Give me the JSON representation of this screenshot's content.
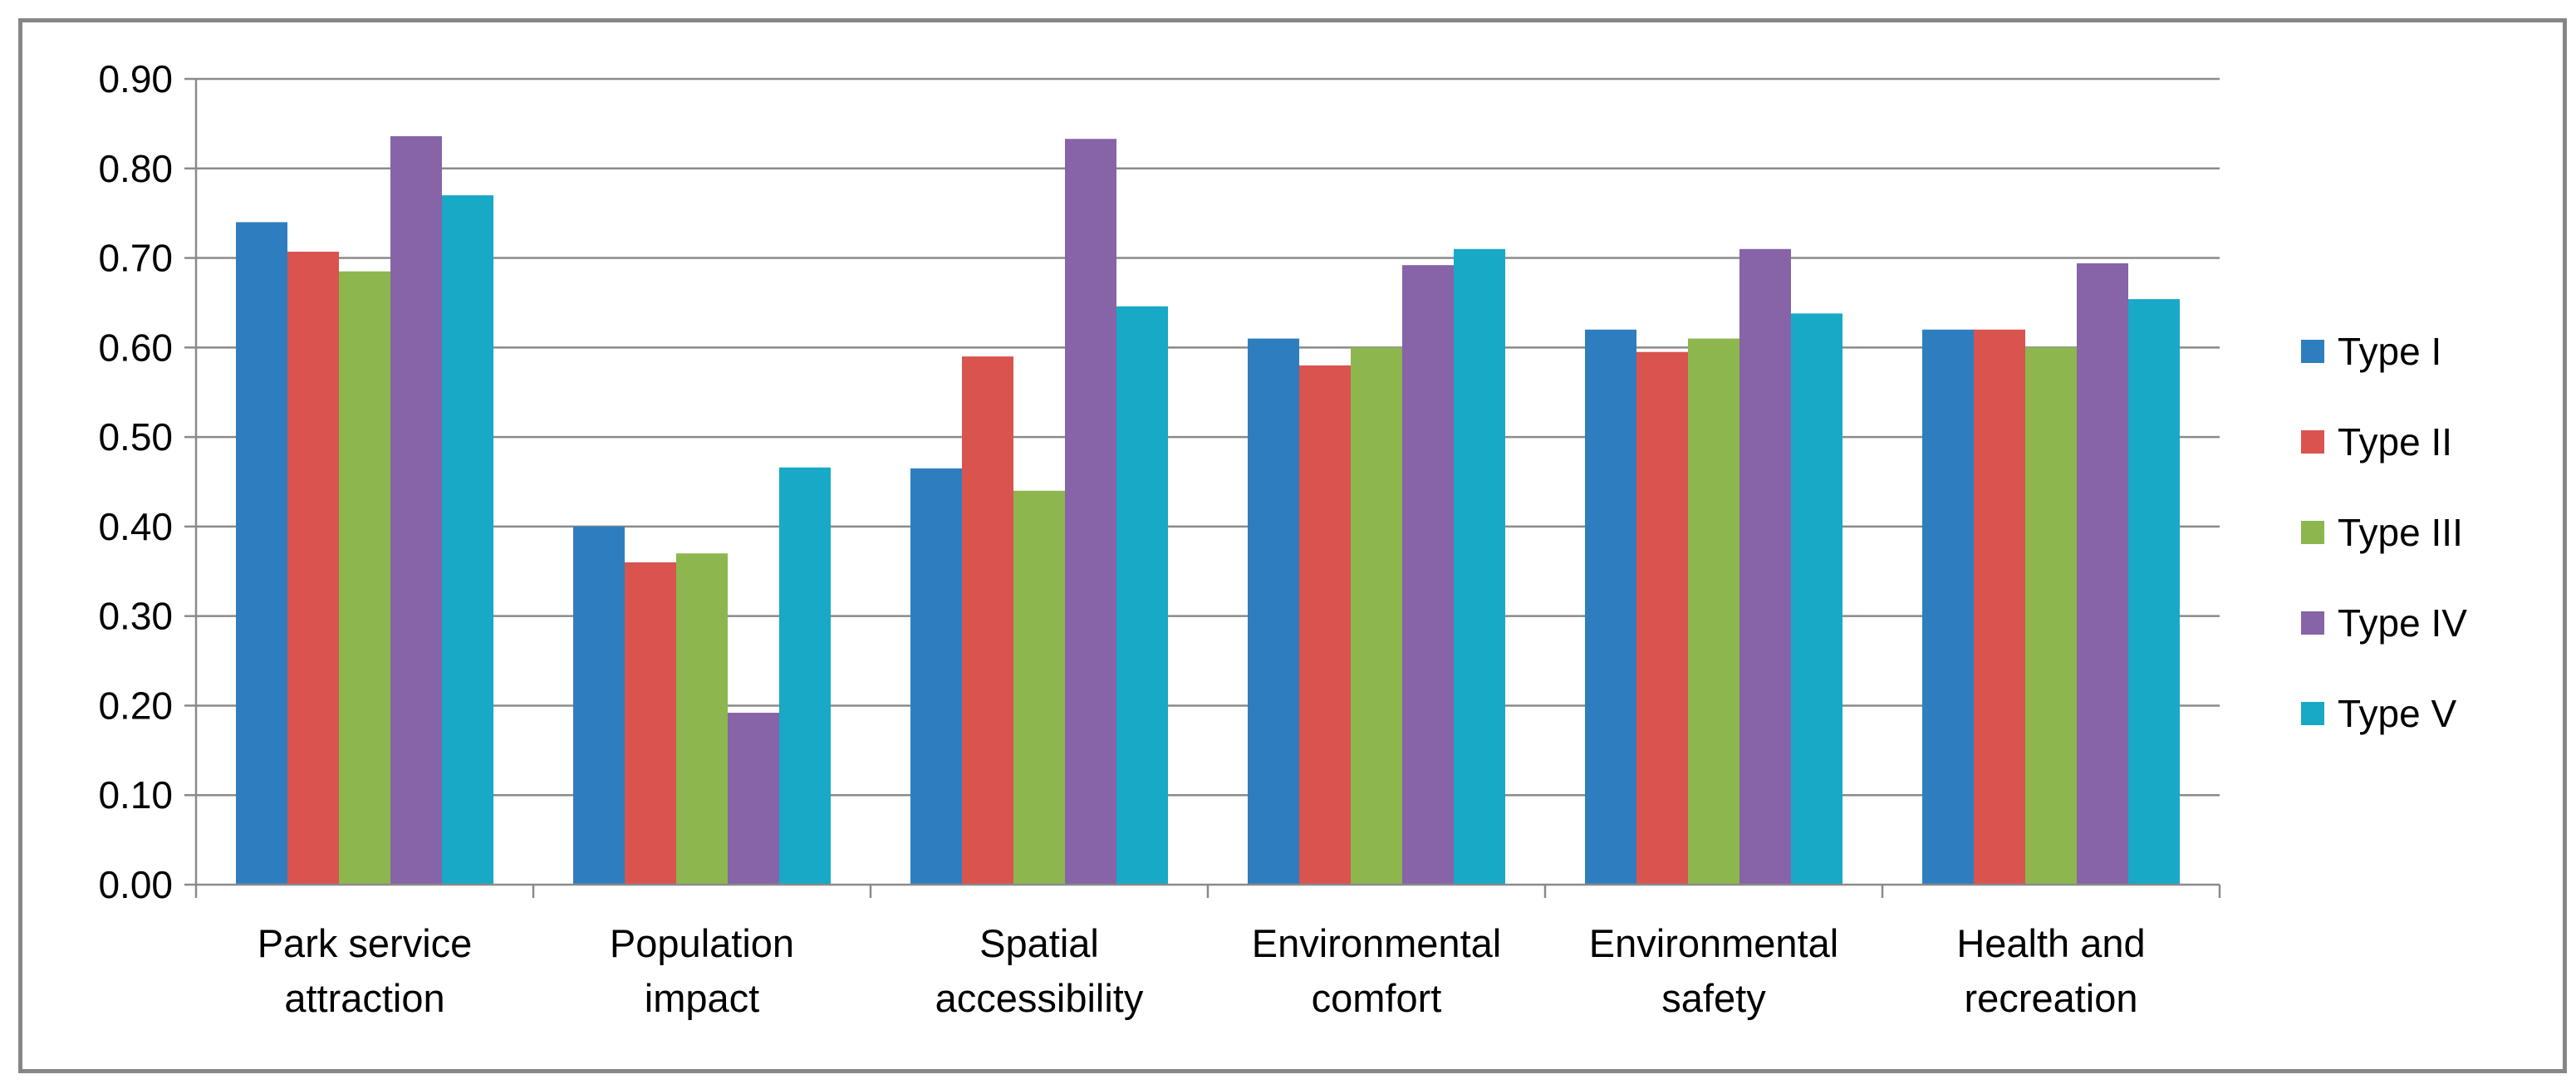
{
  "chart_data": {
    "type": "bar",
    "title": "",
    "xlabel": "",
    "ylabel": "",
    "ylim": [
      0,
      0.9
    ],
    "yticks": [
      "0.00",
      "0.10",
      "0.20",
      "0.30",
      "0.40",
      "0.50",
      "0.60",
      "0.70",
      "0.80",
      "0.90"
    ],
    "grid": true,
    "legend_position": "right",
    "categories": [
      [
        "Park service",
        "attraction"
      ],
      [
        "Population",
        "impact"
      ],
      [
        "Spatial",
        "accessibility"
      ],
      [
        "Environmental",
        "comfort"
      ],
      [
        "Environmental",
        "safety"
      ],
      [
        "Health and",
        "recreation"
      ]
    ],
    "series": [
      {
        "name": "Type I",
        "color": "#2e7ebf",
        "values": [
          0.74,
          0.4,
          0.465,
          0.61,
          0.62,
          0.62
        ]
      },
      {
        "name": "Type II",
        "color": "#d9534f",
        "values": [
          0.707,
          0.36,
          0.59,
          0.58,
          0.595,
          0.62
        ]
      },
      {
        "name": "Type III",
        "color": "#8db64e",
        "values": [
          0.685,
          0.37,
          0.44,
          0.6,
          0.61,
          0.6
        ]
      },
      {
        "name": "Type IV",
        "color": "#8763a8",
        "values": [
          0.836,
          0.192,
          0.833,
          0.692,
          0.71,
          0.694
        ]
      },
      {
        "name": "Type V",
        "color": "#17a9c6",
        "values": [
          0.77,
          0.466,
          0.646,
          0.71,
          0.638,
          0.654
        ]
      }
    ]
  }
}
